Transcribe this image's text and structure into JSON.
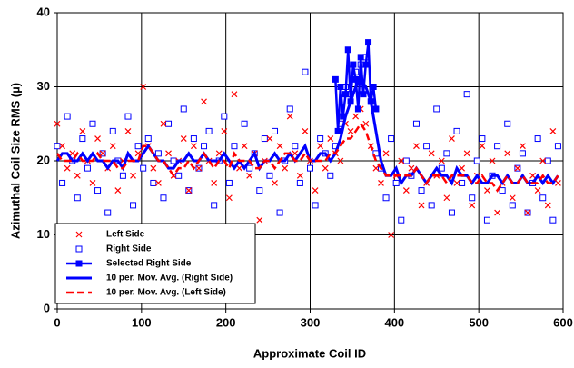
{
  "chart_data": {
    "type": "scatter",
    "xlabel": "Approximate Coil ID",
    "ylabel": "Azimuthal Coil Size RMS (µ)",
    "xlim": [
      0,
      600
    ],
    "xticks": [
      0,
      100,
      200,
      300,
      400,
      500,
      600
    ],
    "ylim": [
      0,
      40
    ],
    "yticks": [
      0,
      10,
      20,
      30,
      40
    ],
    "grid": true,
    "legend": "lower left",
    "x": [
      0,
      6,
      12,
      18,
      24,
      30,
      36,
      42,
      48,
      54,
      60,
      66,
      72,
      78,
      84,
      90,
      96,
      102,
      108,
      114,
      120,
      126,
      132,
      138,
      144,
      150,
      156,
      162,
      168,
      174,
      180,
      186,
      192,
      198,
      204,
      210,
      216,
      222,
      228,
      234,
      240,
      246,
      252,
      258,
      264,
      270,
      276,
      282,
      288,
      294,
      300,
      306,
      312,
      318,
      324,
      330,
      336,
      342,
      348,
      354,
      360,
      366,
      372,
      378,
      384,
      390,
      396,
      402,
      408,
      414,
      420,
      426,
      432,
      438,
      444,
      450,
      456,
      462,
      468,
      474,
      480,
      486,
      492,
      498,
      504,
      510,
      516,
      522,
      528,
      534,
      540,
      546,
      552,
      558,
      564,
      570,
      576,
      582,
      588,
      594
    ],
    "series": [
      {
        "name": "Left Side",
        "color": "#ff0000",
        "style": "x",
        "values": [
          25,
          22,
          19,
          21,
          18,
          24,
          20,
          17,
          23,
          21,
          19,
          22,
          16,
          20,
          24,
          18,
          21,
          30,
          22,
          19,
          17,
          25,
          21,
          18,
          20,
          23,
          16,
          22,
          19,
          28,
          20,
          17,
          21,
          24,
          15,
          29,
          19,
          22,
          18,
          21,
          12,
          20,
          23,
          17,
          22,
          19,
          26,
          21,
          18,
          24,
          20,
          16,
          22,
          19,
          23,
          21,
          20,
          25,
          24,
          26,
          27,
          25,
          22,
          19,
          17,
          21,
          10,
          18,
          20,
          16,
          19,
          22,
          14,
          17,
          21,
          18,
          20,
          15,
          23,
          17,
          19,
          21,
          14,
          18,
          22,
          16,
          20,
          13,
          17,
          21,
          15,
          19,
          22,
          13,
          18,
          16,
          20,
          14,
          24,
          17
        ]
      },
      {
        "name": "Right Side",
        "color": "#0000ff",
        "style": "square",
        "values": [
          22,
          17,
          26,
          20,
          15,
          23,
          19,
          25,
          16,
          21,
          13,
          24,
          20,
          18,
          26,
          14,
          22,
          19,
          23,
          17,
          21,
          15,
          25,
          20,
          18,
          27,
          16,
          23,
          19,
          22,
          24,
          14,
          20,
          26,
          17,
          22,
          11,
          25,
          19,
          21,
          16,
          23,
          18,
          24,
          13,
          20,
          27,
          22,
          17,
          32,
          19,
          14,
          23,
          21,
          18,
          22,
          25,
          30,
          29,
          32,
          33,
          34,
          28,
          21,
          19,
          15,
          23,
          17,
          12,
          20,
          18,
          25,
          16,
          22,
          14,
          27,
          19,
          21,
          13,
          24,
          17,
          29,
          15,
          20,
          23,
          12,
          18,
          22,
          16,
          25,
          14,
          19,
          21,
          13,
          17,
          23,
          15,
          20,
          12,
          22
        ]
      },
      {
        "name": "Selected Right Side",
        "color": "#0000ff",
        "style": "square-line",
        "x": [
          330,
          333,
          336,
          339,
          342,
          345,
          348,
          351,
          354,
          357,
          360,
          363,
          366,
          369,
          372,
          375,
          378
        ],
        "values": [
          31,
          24,
          30,
          26,
          29,
          35,
          28,
          33,
          31,
          27,
          34,
          29,
          33,
          36,
          28,
          30,
          27
        ]
      },
      {
        "name": "10 per. Mov. Avg. (Right Side)",
        "color": "#0000ff",
        "style": "line",
        "values": [
          20,
          21,
          21,
          20,
          20,
          21,
          20,
          21,
          20,
          20,
          19,
          20,
          20,
          19,
          21,
          20,
          20,
          21,
          22,
          21,
          20,
          20,
          19,
          19,
          20,
          20,
          21,
          20,
          20,
          21,
          20,
          20,
          20,
          21,
          20,
          19,
          20,
          19,
          20,
          21,
          19,
          20,
          20,
          21,
          20,
          20,
          21,
          20,
          21,
          22,
          20,
          20,
          21,
          21,
          20,
          21,
          23,
          26,
          28,
          30,
          31,
          30,
          28,
          24,
          20,
          18,
          18,
          19,
          17,
          18,
          18,
          19,
          18,
          17,
          18,
          19,
          18,
          18,
          17,
          19,
          18,
          18,
          17,
          18,
          17,
          17,
          18,
          18,
          17,
          18,
          17,
          17,
          18,
          17,
          17,
          18,
          17,
          18,
          17,
          18
        ]
      },
      {
        "name": "10 per. Mov. Avg. (Left Side)",
        "color": "#ff0000",
        "style": "dashed",
        "values": [
          21,
          20,
          20,
          20,
          21,
          20,
          20,
          20,
          21,
          20,
          20,
          20,
          19,
          19,
          20,
          20,
          20,
          22,
          22,
          21,
          20,
          20,
          19,
          18,
          19,
          19,
          20,
          19,
          20,
          21,
          20,
          19,
          20,
          20,
          19,
          21,
          20,
          20,
          20,
          19,
          19,
          20,
          20,
          19,
          20,
          21,
          21,
          20,
          20,
          21,
          20,
          20,
          20,
          20,
          21,
          21,
          22,
          23,
          23,
          24,
          25,
          24,
          22,
          20,
          19,
          18,
          18,
          18,
          18,
          18,
          18,
          19,
          18,
          17,
          18,
          18,
          18,
          17,
          18,
          18,
          18,
          18,
          17,
          17,
          18,
          17,
          17,
          16,
          17,
          18,
          17,
          17,
          18,
          17,
          17,
          17,
          18,
          17,
          17,
          18
        ]
      }
    ]
  }
}
